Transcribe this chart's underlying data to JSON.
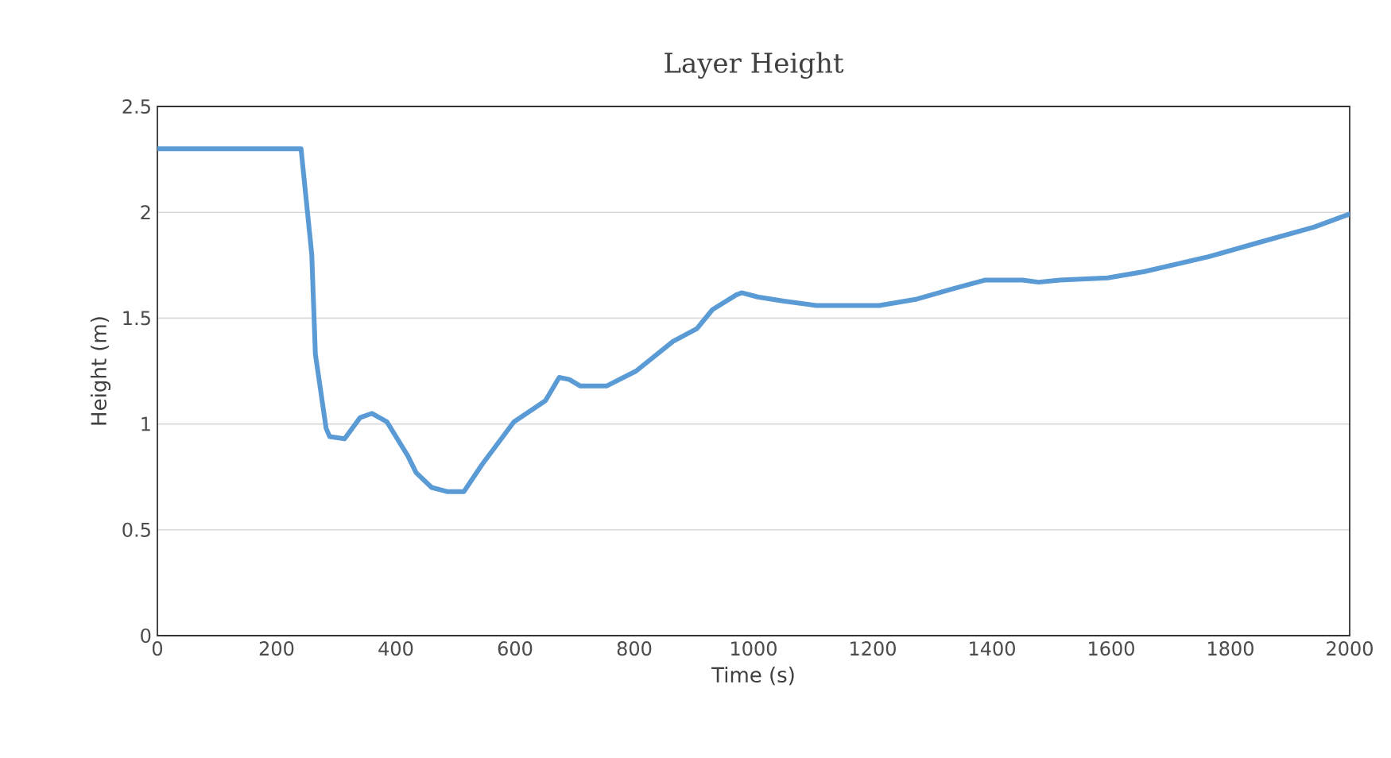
{
  "chart_data": {
    "type": "line",
    "title": "Layer Height",
    "xlabel": "Time (s)",
    "ylabel": "Height (m)",
    "xlim": [
      0,
      2000
    ],
    "ylim": [
      0,
      2.5
    ],
    "xticks": [
      0,
      200,
      400,
      600,
      800,
      1000,
      1200,
      1400,
      1600,
      1800,
      2000
    ],
    "yticks": [
      0,
      0.5,
      1,
      1.5,
      2,
      2.5
    ],
    "grid": "y",
    "marker": "none",
    "line_style": "solid",
    "series": [
      {
        "color": "#5b9bd5",
        "x": [
          0,
          241,
          259,
          265,
          283,
          289,
          314,
          340,
          360,
          385,
          420,
          434,
          460,
          487,
          514,
          545,
          598,
          651,
          674,
          691,
          709,
          754,
          803,
          865,
          905,
          931,
          971,
          980,
          1007,
          1051,
          1105,
          1211,
          1274,
          1336,
          1389,
          1451,
          1478,
          1514,
          1594,
          1656,
          1763,
          1851,
          1940,
          1998
        ],
        "values": [
          2.3,
          2.3,
          1.8,
          1.33,
          0.98,
          0.94,
          0.93,
          1.03,
          1.05,
          1.01,
          0.85,
          0.77,
          0.7,
          0.68,
          0.68,
          0.81,
          1.01,
          1.11,
          1.22,
          1.21,
          1.18,
          1.18,
          1.25,
          1.39,
          1.45,
          1.54,
          1.61,
          1.62,
          1.6,
          1.58,
          1.56,
          1.56,
          1.59,
          1.64,
          1.68,
          1.68,
          1.67,
          1.68,
          1.69,
          1.72,
          1.79,
          1.86,
          1.93,
          1.99
        ]
      }
    ]
  }
}
